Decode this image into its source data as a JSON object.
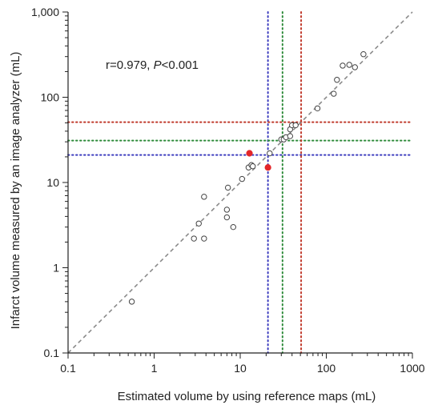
{
  "chart_data": {
    "type": "scatter",
    "title": "",
    "xlabel": "Estimated volume by using reference maps (mL)",
    "ylabel": "Infarct volume measured by an image analyzer (mL)",
    "x_scale": "log",
    "y_scale": "log",
    "xlim": [
      0.1,
      1000
    ],
    "ylim": [
      0.1,
      1000
    ],
    "x_ticks": [
      "0.1",
      "1",
      "10",
      "100",
      "1000"
    ],
    "y_ticks": [
      "0.1",
      "1",
      "10",
      "100",
      "1,000"
    ],
    "grid": false,
    "annotation": {
      "prefix": "r=0.979, ",
      "p_symbol": "P",
      "suffix": "<0.001"
    },
    "identity_line": {
      "style": "dashed",
      "color": "#8a8a8a"
    },
    "reference_lines": [
      {
        "value": 21,
        "color": "#3d3dbf",
        "style": "dotted"
      },
      {
        "value": 31,
        "color": "#2e8b3a",
        "style": "dotted"
      },
      {
        "value": 51,
        "color": "#c0392b",
        "style": "dotted"
      }
    ],
    "series": [
      {
        "marker": "open-circle",
        "color": "#444444",
        "points": [
          [
            0.55,
            0.4
          ],
          [
            2.9,
            2.2
          ],
          [
            3.3,
            3.3
          ],
          [
            3.8,
            2.2
          ],
          [
            3.8,
            6.8
          ],
          [
            7.0,
            3.9
          ],
          [
            7.0,
            4.8
          ],
          [
            7.2,
            8.7
          ],
          [
            8.3,
            3.0
          ],
          [
            10.5,
            11.0
          ],
          [
            12.5,
            15.0
          ],
          [
            13.5,
            16.0
          ],
          [
            14.0,
            15.5
          ],
          [
            22.0,
            22.0
          ],
          [
            30.0,
            32.0
          ],
          [
            32.0,
            32.0
          ],
          [
            34.0,
            34.0
          ],
          [
            38.0,
            35.0
          ],
          [
            38.0,
            42.0
          ],
          [
            40.0,
            47.0
          ],
          [
            44.0,
            47.0
          ],
          [
            79.0,
            74.0
          ],
          [
            122.0,
            110.0
          ],
          [
            133.0,
            160.0
          ],
          [
            155.0,
            235.0
          ],
          [
            185.0,
            240.0
          ],
          [
            215.0,
            225.0
          ],
          [
            270.0,
            320.0
          ]
        ]
      },
      {
        "marker": "filled-circle",
        "color": "#e3262a",
        "points": [
          [
            12.8,
            22.0
          ],
          [
            21.0,
            15.0
          ]
        ]
      }
    ]
  }
}
